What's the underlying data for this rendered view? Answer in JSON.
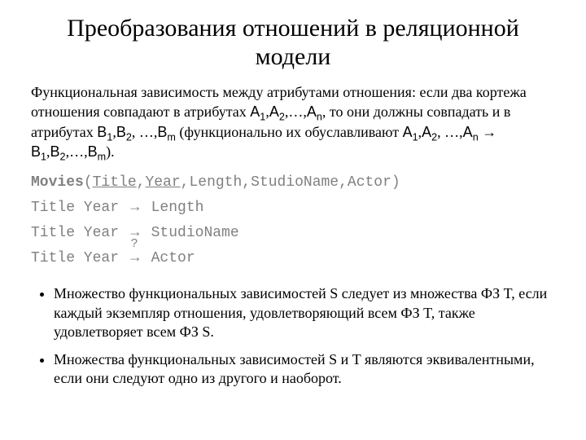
{
  "title": "Преобразования отношений в реляционной модели",
  "para_prefix": "Функциональная зависимость между атрибутами отношения: если два кортежа отношения совпадают в атрибутах ",
  "A1": "А",
  "A1s": "1",
  "A2": "А",
  "A2s": "2",
  "An": "А",
  "Ans": "n",
  "para_mid1": ", то они должны совпадать и в атрибутах ",
  "B1": "B",
  "B1s": "1",
  "B2": "B",
  "B2s": "2",
  "Bm": "B",
  "Bms": "m",
  "para_mid2": " (функционально их обуславливают ",
  "arrow": "→",
  "para_end": ").",
  "comma": ",",
  "ellipsis": "…",
  "mono": {
    "relation": "Movies",
    "lparen": "(",
    "key1": "Title",
    "key2": "Year",
    "attrs_rest": ",Length,StudioName,Actor)",
    "fd1_lhs": "Title Year ",
    "fd1_rhs": " Length",
    "fd2_lhs": "Title Year ",
    "fd2_rhs": " StudioName",
    "fd3_lhs": "Title Year ",
    "fd3_rhs": " Actor",
    "arrow": "→",
    "q": "?"
  },
  "bullets": [
    "Множество функциональных зависимостей S следует из множества ФЗ T, если каждый экземпляр отношения, удовлетворяющий всем ФЗ T, также удовлетворяет  всем ФЗ S.",
    "Множества функциональных зависимостей S и T являются эквивалентными, если они следуют одно из другого и наоборот."
  ]
}
